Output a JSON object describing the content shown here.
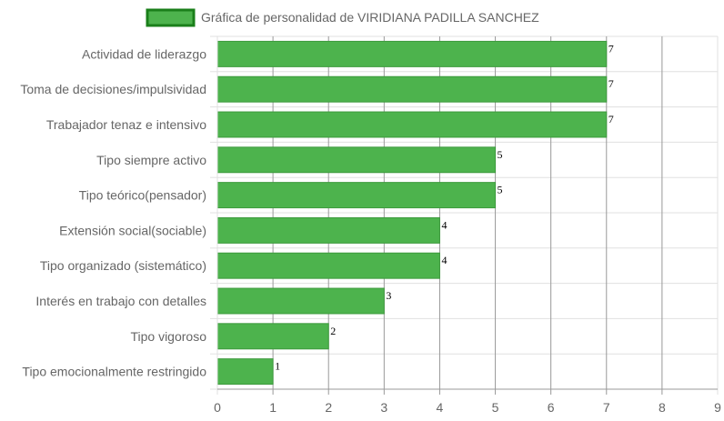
{
  "chart_data": {
    "type": "bar",
    "orientation": "horizontal",
    "title": "",
    "legend": {
      "position": "top",
      "entries": [
        {
          "name": "Gráfica de personalidad de VIRIDIANA PADILLA SANCHEZ",
          "color": "#4db34d",
          "border_color": "#1a7f1a"
        }
      ]
    },
    "categories": [
      "Actividad de liderazgo",
      "Toma de decisiones/impulsividad",
      "Trabajador tenaz e intensivo",
      "Tipo siempre activo",
      "Tipo teórico(pensador)",
      "Extensión social(sociable)",
      "Tipo organizado (sistemático)",
      "Interés en trabajo con detalles",
      "Tipo vigoroso",
      "Tipo emocionalmente restringido"
    ],
    "series": [
      {
        "name": "Gráfica de personalidad de VIRIDIANA PADILLA SANCHEZ",
        "values": [
          7,
          7,
          7,
          5,
          5,
          4,
          4,
          3,
          2,
          1
        ]
      }
    ],
    "xlim": [
      0,
      9
    ],
    "x_ticks": [
      "0",
      "1",
      "2",
      "3",
      "4",
      "5",
      "6",
      "7",
      "8",
      "9"
    ],
    "xlabel": "",
    "ylabel": "",
    "grid": true,
    "data_labels": true,
    "colors": {
      "bar": "#4db34d",
      "bar_border": "#3d9a3d",
      "grid": "#e0e0e0",
      "major_grid": "#999999",
      "text": "#666666"
    }
  }
}
